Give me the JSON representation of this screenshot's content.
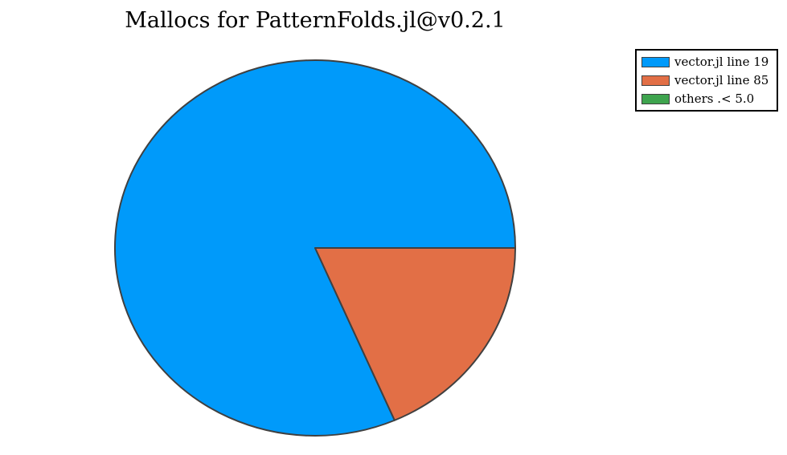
{
  "chart_data": {
    "type": "pie",
    "title": "Mallocs for PatternFolds.jl@v0.2.1",
    "legend_position": "top-right",
    "slices": [
      {
        "label": "vector.jl line 19",
        "value": 81.5,
        "color": "#009AFA"
      },
      {
        "label": "vector.jl line 85",
        "value": 18.5,
        "color": "#E26F46"
      },
      {
        "label": "others .< 5.0",
        "value": 0.0,
        "color": "#3EA44E"
      }
    ],
    "edge_color": "#404040"
  }
}
